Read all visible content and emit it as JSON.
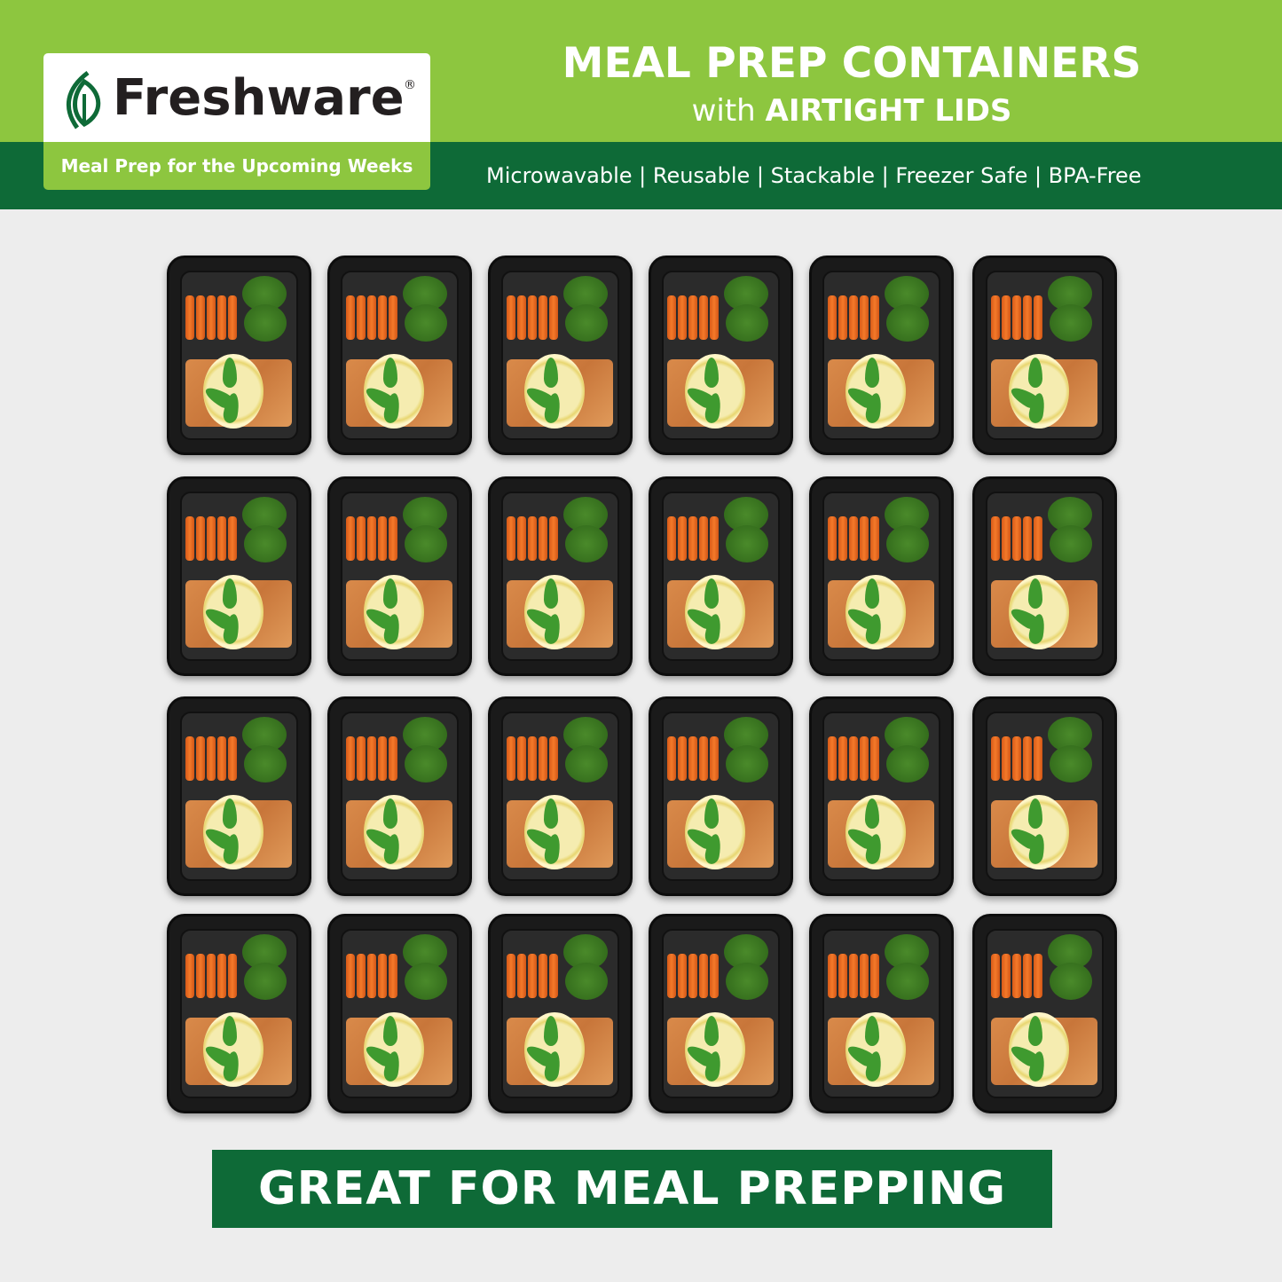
{
  "colors": {
    "light_green": "#8dc63f",
    "dark_green": "#0e6a37",
    "background": "#ededed"
  },
  "logo": {
    "brand": "Freshware",
    "registered": "®",
    "tagline": "Meal Prep for the Upcoming Weeks",
    "icon": "leaf-icon"
  },
  "header": {
    "title": "MEAL PREP CONTAINERS",
    "subtitle_prefix": "with",
    "subtitle_bold": "AIRTIGHT LIDS",
    "features": "Microwavable | Reusable | Stackable | Freezer Safe | BPA-Free"
  },
  "grid": {
    "rows": 4,
    "cols": 6,
    "item": "meal prep container with carrots, broccoli, salmon, lemon and mint"
  },
  "cta": {
    "label": "GREAT FOR MEAL PREPPING"
  }
}
